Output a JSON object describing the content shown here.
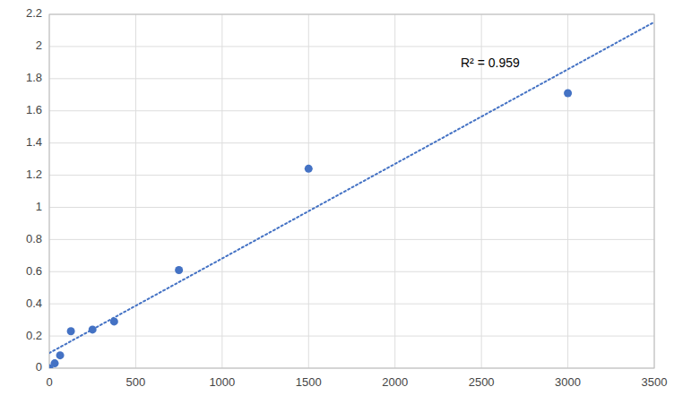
{
  "chart_data": {
    "type": "scatter",
    "series": [
      {
        "type": "scatter",
        "color": "#4472C4",
        "marker": "circle",
        "x": [
          0,
          31.25,
          62.5,
          125,
          250,
          375,
          750,
          1500,
          3000
        ],
        "values": [
          0.0,
          0.03,
          0.08,
          0.23,
          0.24,
          0.29,
          0.61,
          1.24,
          1.71
        ]
      },
      {
        "type": "line",
        "color": "#4472C4",
        "line_style": "dotted",
        "x": [
          0,
          3500
        ],
        "values": [
          0.09407,
          2.1522
        ]
      }
    ],
    "annotations": [
      {
        "text": "R² = 0.959",
        "x": 2380,
        "y": 1.93
      }
    ],
    "xlim": [
      0,
      3500
    ],
    "ylim": [
      0,
      2.2
    ],
    "xticks": [
      0,
      500,
      1000,
      1500,
      2000,
      2500,
      3000,
      3500
    ],
    "yticks": [
      0,
      0.2,
      0.4,
      0.6,
      0.8,
      1,
      1.2,
      1.4,
      1.6,
      1.8,
      2,
      2.2
    ],
    "grid": true
  }
}
